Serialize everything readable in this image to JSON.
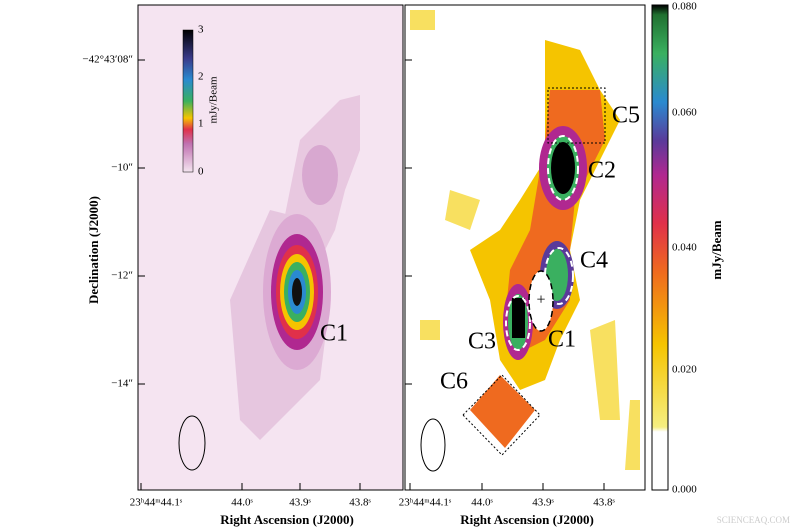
{
  "left_panel": {
    "colorbar_label": "mJy/Beam",
    "colorbar_ticks": [
      "3",
      "2",
      "1",
      "0"
    ],
    "source_labels": [
      "C1"
    ],
    "y_tick_labels": [
      "−42°43′08″",
      "−10″",
      "−12″",
      "−14″"
    ],
    "x_tick_labels": [
      "23ʰ44ᵐ44.1ˢ",
      "44.0ˢ",
      "43.9ˢ",
      "43.8ˢ"
    ],
    "x_axis_title": "Right Ascension (J2000)",
    "y_axis_title": "Declination (J2000)"
  },
  "right_panel": {
    "colorbar_label": "mJy/Beam",
    "colorbar_ticks": [
      "0.080",
      "0.060",
      "0.040",
      "0.020",
      "0.000"
    ],
    "source_labels": [
      "C5",
      "C2",
      "C4",
      "C3",
      "C1",
      "C6"
    ],
    "x_tick_labels": [
      "23ʰ44ᵐ44.1ˢ",
      "44.0ˢ",
      "43.9ˢ",
      "43.8ˢ"
    ],
    "x_axis_title": "Right Ascension (J2000)"
  },
  "watermark": "SCIENCEAQ.COM"
}
